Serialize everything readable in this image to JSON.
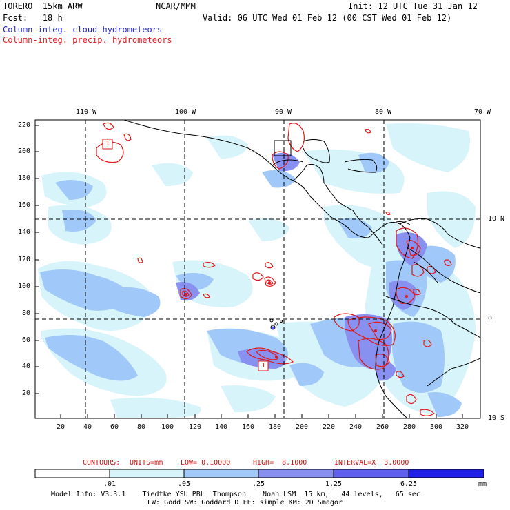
{
  "header": {
    "model": "TORERO  15km ARW",
    "org": "NCAR/MMM",
    "init": "Init: 12 UTC Tue 31 Jan 12",
    "fcst": "Fcst:   18 h",
    "valid": "Valid: 06 UTC Wed 01 Feb 12 (00 CST Wed 01 Feb 12)",
    "field1": "Column-integ. cloud hydrometeors",
    "field2": "Column-integ. precip. hydrometeors"
  },
  "map": {
    "lon_labels": [
      "110 W",
      "100 W",
      "90 W",
      "80 W",
      "70 W"
    ],
    "lat_labels": [
      "10 N",
      "0",
      "10 S"
    ],
    "y_ticks": [
      "220",
      "200",
      "180",
      "160",
      "140",
      "120",
      "100",
      "80",
      "60",
      "40",
      "20"
    ],
    "x_ticks": [
      "20",
      "40",
      "60",
      "80",
      "100",
      "120",
      "140",
      "160",
      "180",
      "200",
      "220",
      "240",
      "260",
      "280",
      "300",
      "320"
    ],
    "low_labels": [
      "1",
      "1"
    ]
  },
  "contour_info": {
    "contours": "CONTOURS:",
    "units": "UNITS=mm",
    "low": "LOW= 0.10000",
    "high": "HIGH=  8.1000",
    "interval": "INTERVAL=X  3.0000"
  },
  "colorbar": {
    "labels": [
      ".01",
      ".05",
      ".25",
      "1.25",
      "6.25"
    ],
    "unit": "mm",
    "colors": [
      "#ffffff",
      "#d8f4fb",
      "#a0c8f8",
      "#8890f0",
      "#6060f0",
      "#2020e8"
    ]
  },
  "footer": {
    "line1": "Model Info: V3.3.1    Tiedtke YSU PBL  Thompson    Noah LSM  15 km,   44 levels,   65 sec",
    "line2": "LW: Godd SW: Goddard DIFF: simple KM: 2D Smagor"
  }
}
